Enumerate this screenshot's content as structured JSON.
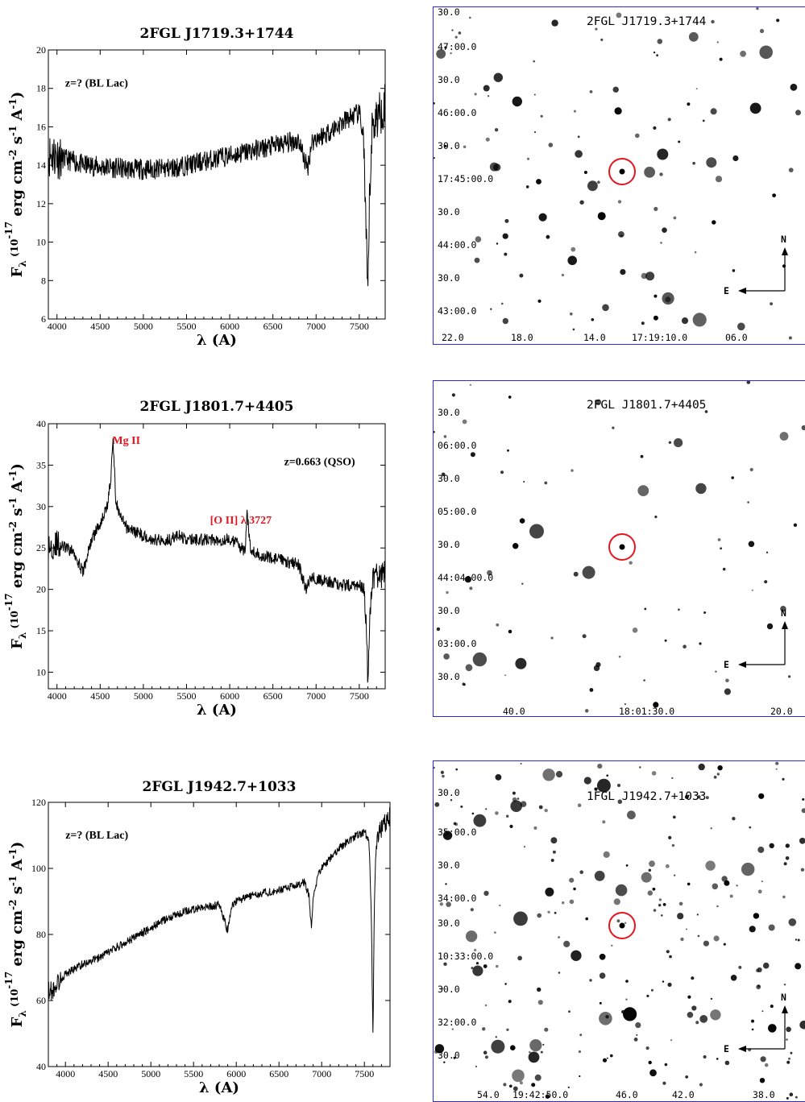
{
  "colors": {
    "line": "#000000",
    "annotation": "#e8141e",
    "marker": "#e8141e",
    "frame": "#2b2bd4"
  },
  "chart_data": [
    {
      "type": "line",
      "title": "2FGL J1719.3+1744",
      "xlabel": "λ (A)",
      "ylabel": "F_λ (10^-17 erg cm^-2 s^-1 A^-1)",
      "xlim": [
        3900,
        7800
      ],
      "ylim": [
        6,
        20
      ],
      "xticks": [
        4000,
        4500,
        5000,
        5500,
        6000,
        6500,
        7000,
        7500
      ],
      "yticks": [
        6,
        8,
        10,
        12,
        14,
        16,
        18,
        20
      ],
      "annotations": [
        {
          "text": "z=? (BL Lac)",
          "color": "black"
        }
      ],
      "x": [
        3900,
        3950,
        4000,
        4100,
        4200,
        4300,
        4400,
        4500,
        4600,
        4800,
        5000,
        5200,
        5400,
        5500,
        5600,
        5800,
        6000,
        6200,
        6400,
        6600,
        6800,
        6900,
        6950,
        7000,
        7100,
        7200,
        7300,
        7400,
        7500,
        7550,
        7580,
        7600,
        7620,
        7650,
        7700,
        7750,
        7800
      ],
      "y": [
        14.5,
        14.6,
        14.5,
        14.3,
        14.2,
        14.0,
        14.0,
        13.9,
        13.9,
        13.8,
        13.8,
        13.8,
        13.9,
        14.0,
        14.1,
        14.3,
        14.5,
        14.7,
        14.9,
        15.1,
        15.3,
        13.8,
        15.2,
        15.4,
        15.6,
        15.9,
        16.2,
        16.5,
        16.7,
        15.5,
        10.0,
        7.0,
        12.5,
        16.0,
        16.5,
        16.8,
        17.2
      ]
    },
    {
      "type": "line",
      "title": "2FGL J1801.7+4405",
      "xlabel": "λ (A)",
      "ylabel": "F_λ (10^-17 erg cm^-2 s^-1 A^-1)",
      "xlim": [
        3900,
        7800
      ],
      "ylim": [
        8,
        40
      ],
      "xticks": [
        4000,
        4500,
        5000,
        5500,
        6000,
        6500,
        7000,
        7500
      ],
      "yticks": [
        10,
        15,
        20,
        25,
        30,
        35,
        40
      ],
      "annotations": [
        {
          "text": "Mg II",
          "color": "red"
        },
        {
          "text": "z=0.663 (QSO)",
          "color": "black"
        },
        {
          "text": "[O II] λ 3727",
          "color": "red"
        }
      ],
      "x": [
        3900,
        4000,
        4100,
        4200,
        4300,
        4350,
        4400,
        4500,
        4580,
        4620,
        4650,
        4680,
        4720,
        4800,
        4900,
        5000,
        5100,
        5200,
        5300,
        5400,
        5500,
        5600,
        5800,
        6000,
        6100,
        6180,
        6200,
        6250,
        6400,
        6600,
        6800,
        6880,
        6950,
        7100,
        7300,
        7500,
        7550,
        7580,
        7600,
        7620,
        7650,
        7700,
        7800
      ],
      "y": [
        25,
        25.5,
        25,
        24.5,
        22,
        24,
        26,
        28,
        30,
        33,
        38,
        31,
        29,
        27.5,
        27,
        26.5,
        26,
        26,
        26,
        26.5,
        26,
        26,
        26,
        26,
        25.5,
        24.5,
        29,
        24.5,
        24,
        23.5,
        23,
        20,
        21.5,
        21,
        20.5,
        20.5,
        20,
        16,
        9,
        17,
        21,
        21.5,
        22
      ]
    },
    {
      "type": "line",
      "title": "2FGL J1942.7+1033",
      "xlabel": "λ (A)",
      "ylabel": "F_λ (10^-17 erg cm^-2 s^-1 A^-1)",
      "xlim": [
        3800,
        7800
      ],
      "ylim": [
        40,
        120
      ],
      "xticks": [
        4000,
        4500,
        5000,
        5500,
        6000,
        6500,
        7000,
        7500
      ],
      "yticks": [
        40,
        60,
        80,
        100,
        120
      ],
      "annotations": [
        {
          "text": "z=? (BL Lac)",
          "color": "black"
        }
      ],
      "x": [
        3850,
        3900,
        4000,
        4200,
        4400,
        4600,
        4800,
        5000,
        5200,
        5400,
        5600,
        5800,
        5900,
        5950,
        6000,
        6200,
        6400,
        6600,
        6800,
        6850,
        6880,
        6900,
        6950,
        7000,
        7100,
        7200,
        7300,
        7400,
        7500,
        7550,
        7580,
        7600,
        7620,
        7650,
        7700,
        7750,
        7800
      ],
      "y": [
        63,
        65,
        68,
        71,
        73,
        76,
        79,
        82,
        85,
        87,
        88,
        89,
        81,
        89,
        90,
        92,
        93,
        94,
        96,
        92,
        82,
        92,
        97,
        100,
        103,
        106,
        108,
        110,
        111,
        109,
        90,
        48,
        95,
        110,
        112,
        114,
        116
      ]
    }
  ],
  "finder_charts": [
    {
      "title": "2FGL J1719.3+1744",
      "dec_labels": [
        "30.0",
        "47:00.0",
        "30.0",
        "46:00.0",
        "30.0",
        "17:45:00.0",
        "30.0",
        "44:00.0",
        "30.0",
        "43:00.0"
      ],
      "ra_labels": [
        "22.0",
        "18.0",
        "14.0",
        "17:19:10.0",
        "06.0"
      ],
      "compass": {
        "north": "N",
        "east": "E"
      }
    },
    {
      "title": "2FGL J1801.7+4405",
      "dec_labels": [
        "30.0",
        "06:00.0",
        "30.0",
        "05:00.0",
        "30.0",
        "44:04:00.0",
        "30.0",
        "03:00.0",
        "30.0"
      ],
      "ra_labels": [
        "40.0",
        "18:01:30.0",
        "20.0"
      ],
      "compass": {
        "north": "N",
        "east": "E"
      }
    },
    {
      "title": "1FGL J1942.7+1033",
      "dec_labels": [
        "30.0",
        "35:00.0",
        "30.0",
        "34:00.0",
        "30.0",
        "10:33:00.0",
        "30.0",
        "32:00.0",
        "30.0"
      ],
      "ra_labels": [
        "54.0",
        "19:42:50.0",
        "46.0",
        "42.0",
        "38.0"
      ],
      "compass": {
        "north": "N",
        "east": "E"
      }
    }
  ]
}
